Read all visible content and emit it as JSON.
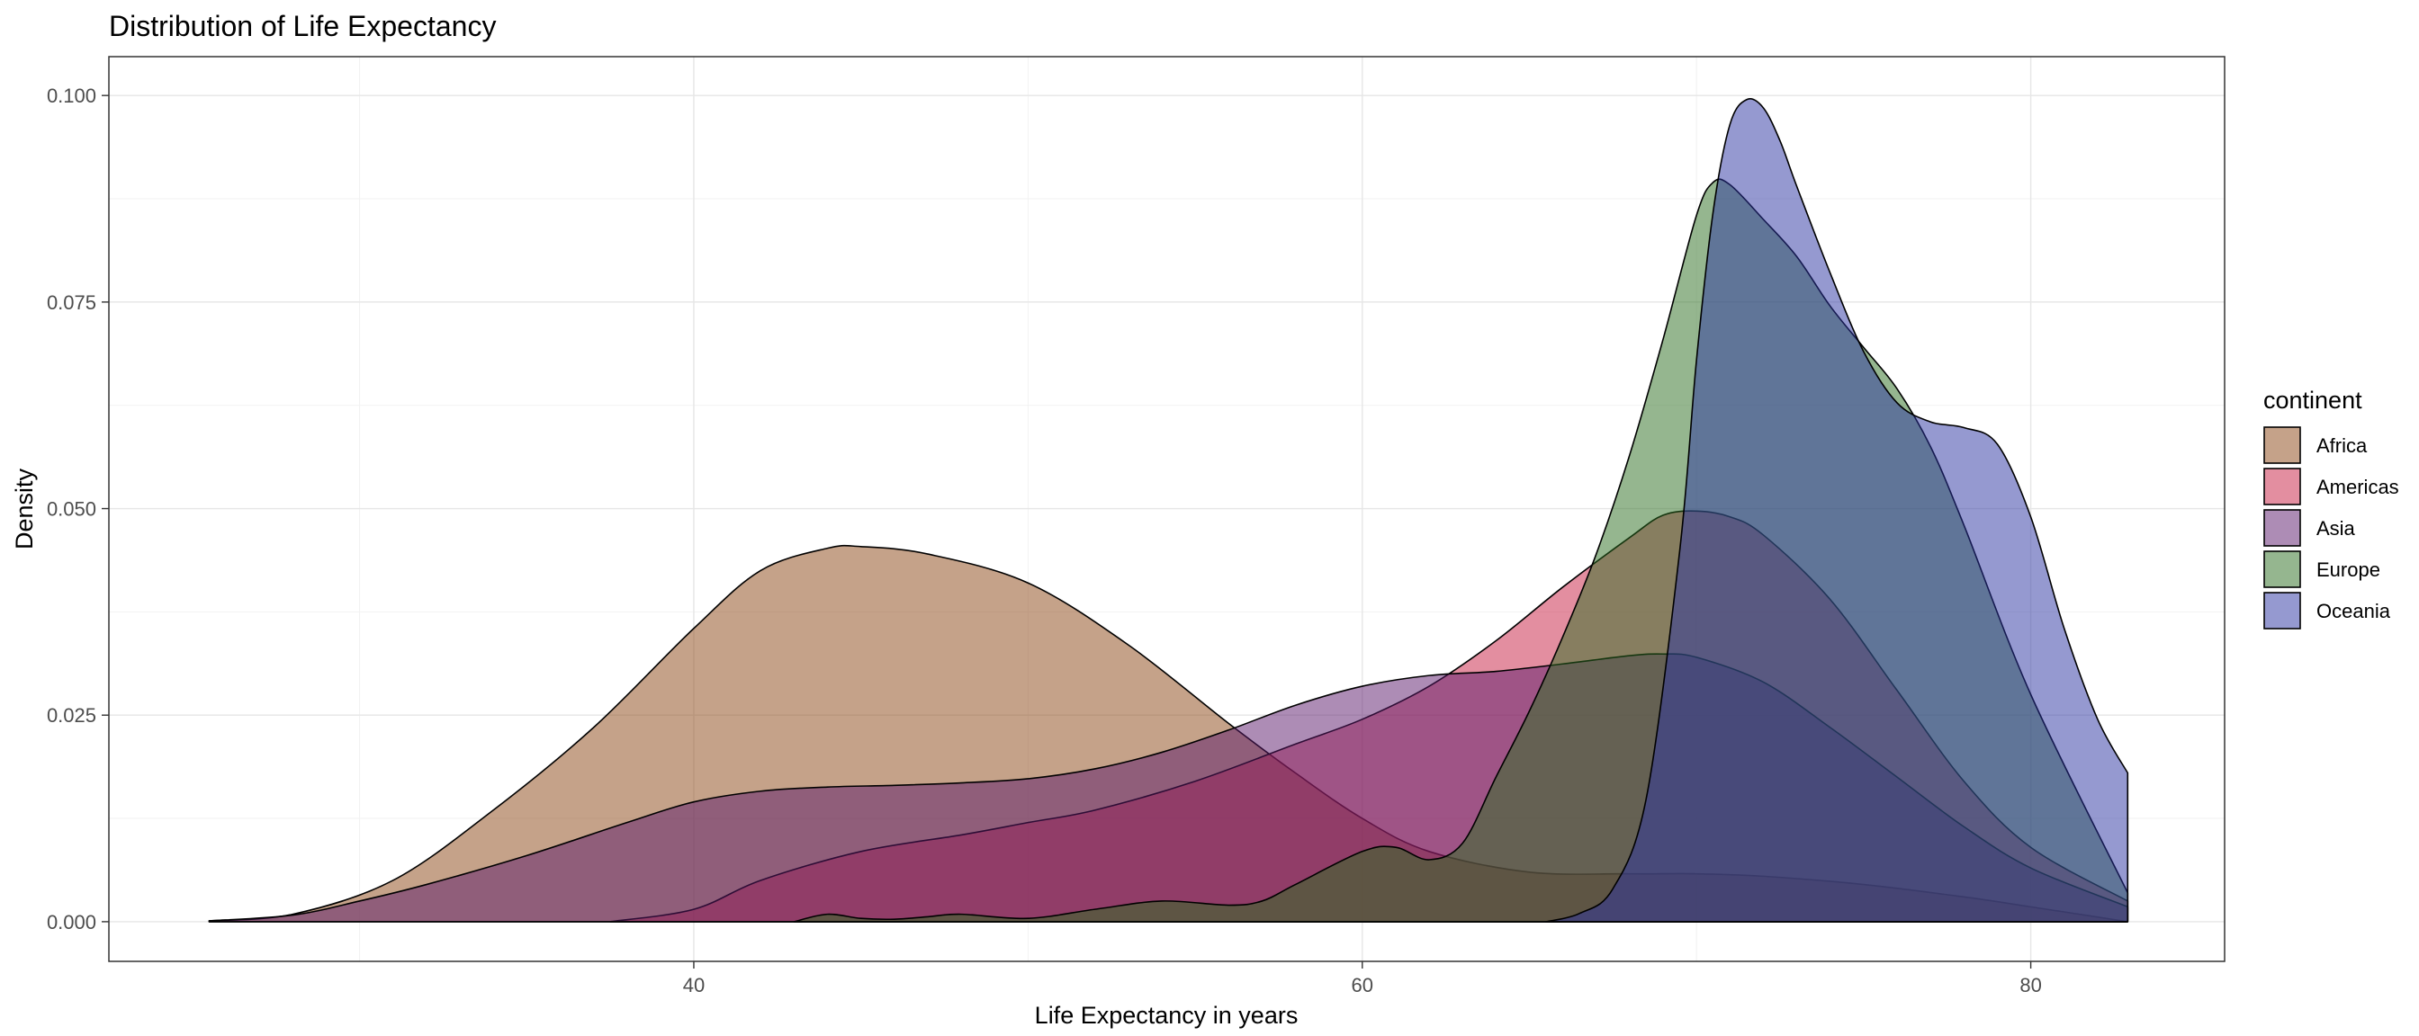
{
  "chart_data": {
    "type": "area",
    "title": "Distribution of Life Expectancy",
    "xlabel": "Life Expectancy in years",
    "ylabel": "Density",
    "xlim": [
      22.5,
      85.8
    ],
    "ylim": [
      -0.0048,
      0.1047
    ],
    "x_ticks": [
      40,
      60,
      80
    ],
    "x_tick_labels": [
      "40",
      "60",
      "80"
    ],
    "y_ticks": [
      0,
      0.025,
      0.05,
      0.075,
      0.1
    ],
    "y_tick_labels": [
      "0.000",
      "0.025",
      "0.050",
      "0.075",
      "0.100"
    ],
    "grid": true,
    "legend": {
      "title": "continent",
      "position": "right"
    },
    "series": [
      {
        "name": "Africa",
        "color": "#8B4513",
        "x": [
          25.5,
          28,
          31,
          34,
          37,
          40,
          42,
          44,
          45,
          47,
          50,
          53,
          56,
          58,
          60,
          62,
          65,
          68,
          70,
          72,
          75,
          78,
          80,
          82.9
        ],
        "y": [
          0.0001,
          0.0009,
          0.005,
          0.0135,
          0.0235,
          0.0355,
          0.0425,
          0.0452,
          0.0454,
          0.0445,
          0.041,
          0.0335,
          0.024,
          0.018,
          0.0125,
          0.0085,
          0.006,
          0.0058,
          0.0058,
          0.0055,
          0.0045,
          0.003,
          0.0018,
          0
        ]
      },
      {
        "name": "Americas",
        "color": "#C71E41",
        "x": [
          37.5,
          40,
          42,
          45,
          48,
          50,
          52,
          55,
          58,
          60,
          62,
          64,
          66,
          68,
          69,
          70,
          71,
          72,
          74,
          76,
          78,
          80,
          82.9
        ],
        "y": [
          0,
          0.0015,
          0.005,
          0.0085,
          0.0105,
          0.012,
          0.0135,
          0.017,
          0.0215,
          0.0245,
          0.0285,
          0.034,
          0.0405,
          0.0465,
          0.0492,
          0.0497,
          0.049,
          0.0468,
          0.039,
          0.028,
          0.017,
          0.009,
          0.0025
        ]
      },
      {
        "name": "Asia",
        "color": "#5C1A6B",
        "x": [
          25.5,
          28,
          30,
          32,
          35,
          38,
          40,
          42,
          44,
          46,
          48,
          50,
          52,
          54,
          56,
          58,
          60,
          62,
          64,
          66,
          68,
          69,
          70,
          72,
          74,
          76,
          78,
          80,
          82.9
        ],
        "y": [
          0.0001,
          0.0008,
          0.0025,
          0.0045,
          0.008,
          0.012,
          0.0145,
          0.0158,
          0.0163,
          0.0165,
          0.0168,
          0.0173,
          0.0185,
          0.0205,
          0.0232,
          0.0262,
          0.0285,
          0.0298,
          0.0303,
          0.0312,
          0.0322,
          0.0324,
          0.032,
          0.029,
          0.0235,
          0.0175,
          0.0115,
          0.0065,
          0.0018
        ]
      },
      {
        "name": "Europe",
        "color": "#2C6E1F",
        "x": [
          43,
          44,
          45,
          46,
          47,
          48,
          50,
          52,
          54,
          56,
          57,
          58,
          60,
          61,
          62,
          63,
          64,
          65,
          66,
          67,
          68,
          69,
          70,
          70.5,
          71,
          72,
          73,
          74,
          75,
          76,
          77,
          78,
          80,
          82.9
        ],
        "y": [
          0,
          0.0009,
          0.0004,
          0.0003,
          0.0006,
          0.0009,
          0.0004,
          0.0015,
          0.0025,
          0.002,
          0.0025,
          0.0045,
          0.0085,
          0.009,
          0.0075,
          0.0095,
          0.0175,
          0.0255,
          0.0345,
          0.0445,
          0.0565,
          0.0705,
          0.0855,
          0.0895,
          0.0892,
          0.085,
          0.0805,
          0.0745,
          0.0695,
          0.0645,
          0.0575,
          0.048,
          0.0275,
          0.0035
        ]
      },
      {
        "name": "Oceania",
        "color": "#2B33A1",
        "x": [
          65.5,
          66.5,
          67.5,
          68.5,
          69.5,
          70,
          70.5,
          71,
          71.5,
          72,
          72.5,
          73,
          74,
          75,
          76,
          77,
          78,
          79,
          80,
          81,
          82,
          82.9
        ],
        "y": [
          0,
          0.001,
          0.004,
          0.015,
          0.045,
          0.068,
          0.086,
          0.0965,
          0.0995,
          0.0985,
          0.0945,
          0.089,
          0.0785,
          0.069,
          0.0628,
          0.0605,
          0.0598,
          0.0578,
          0.049,
          0.0355,
          0.0245,
          0.018
        ]
      }
    ]
  }
}
